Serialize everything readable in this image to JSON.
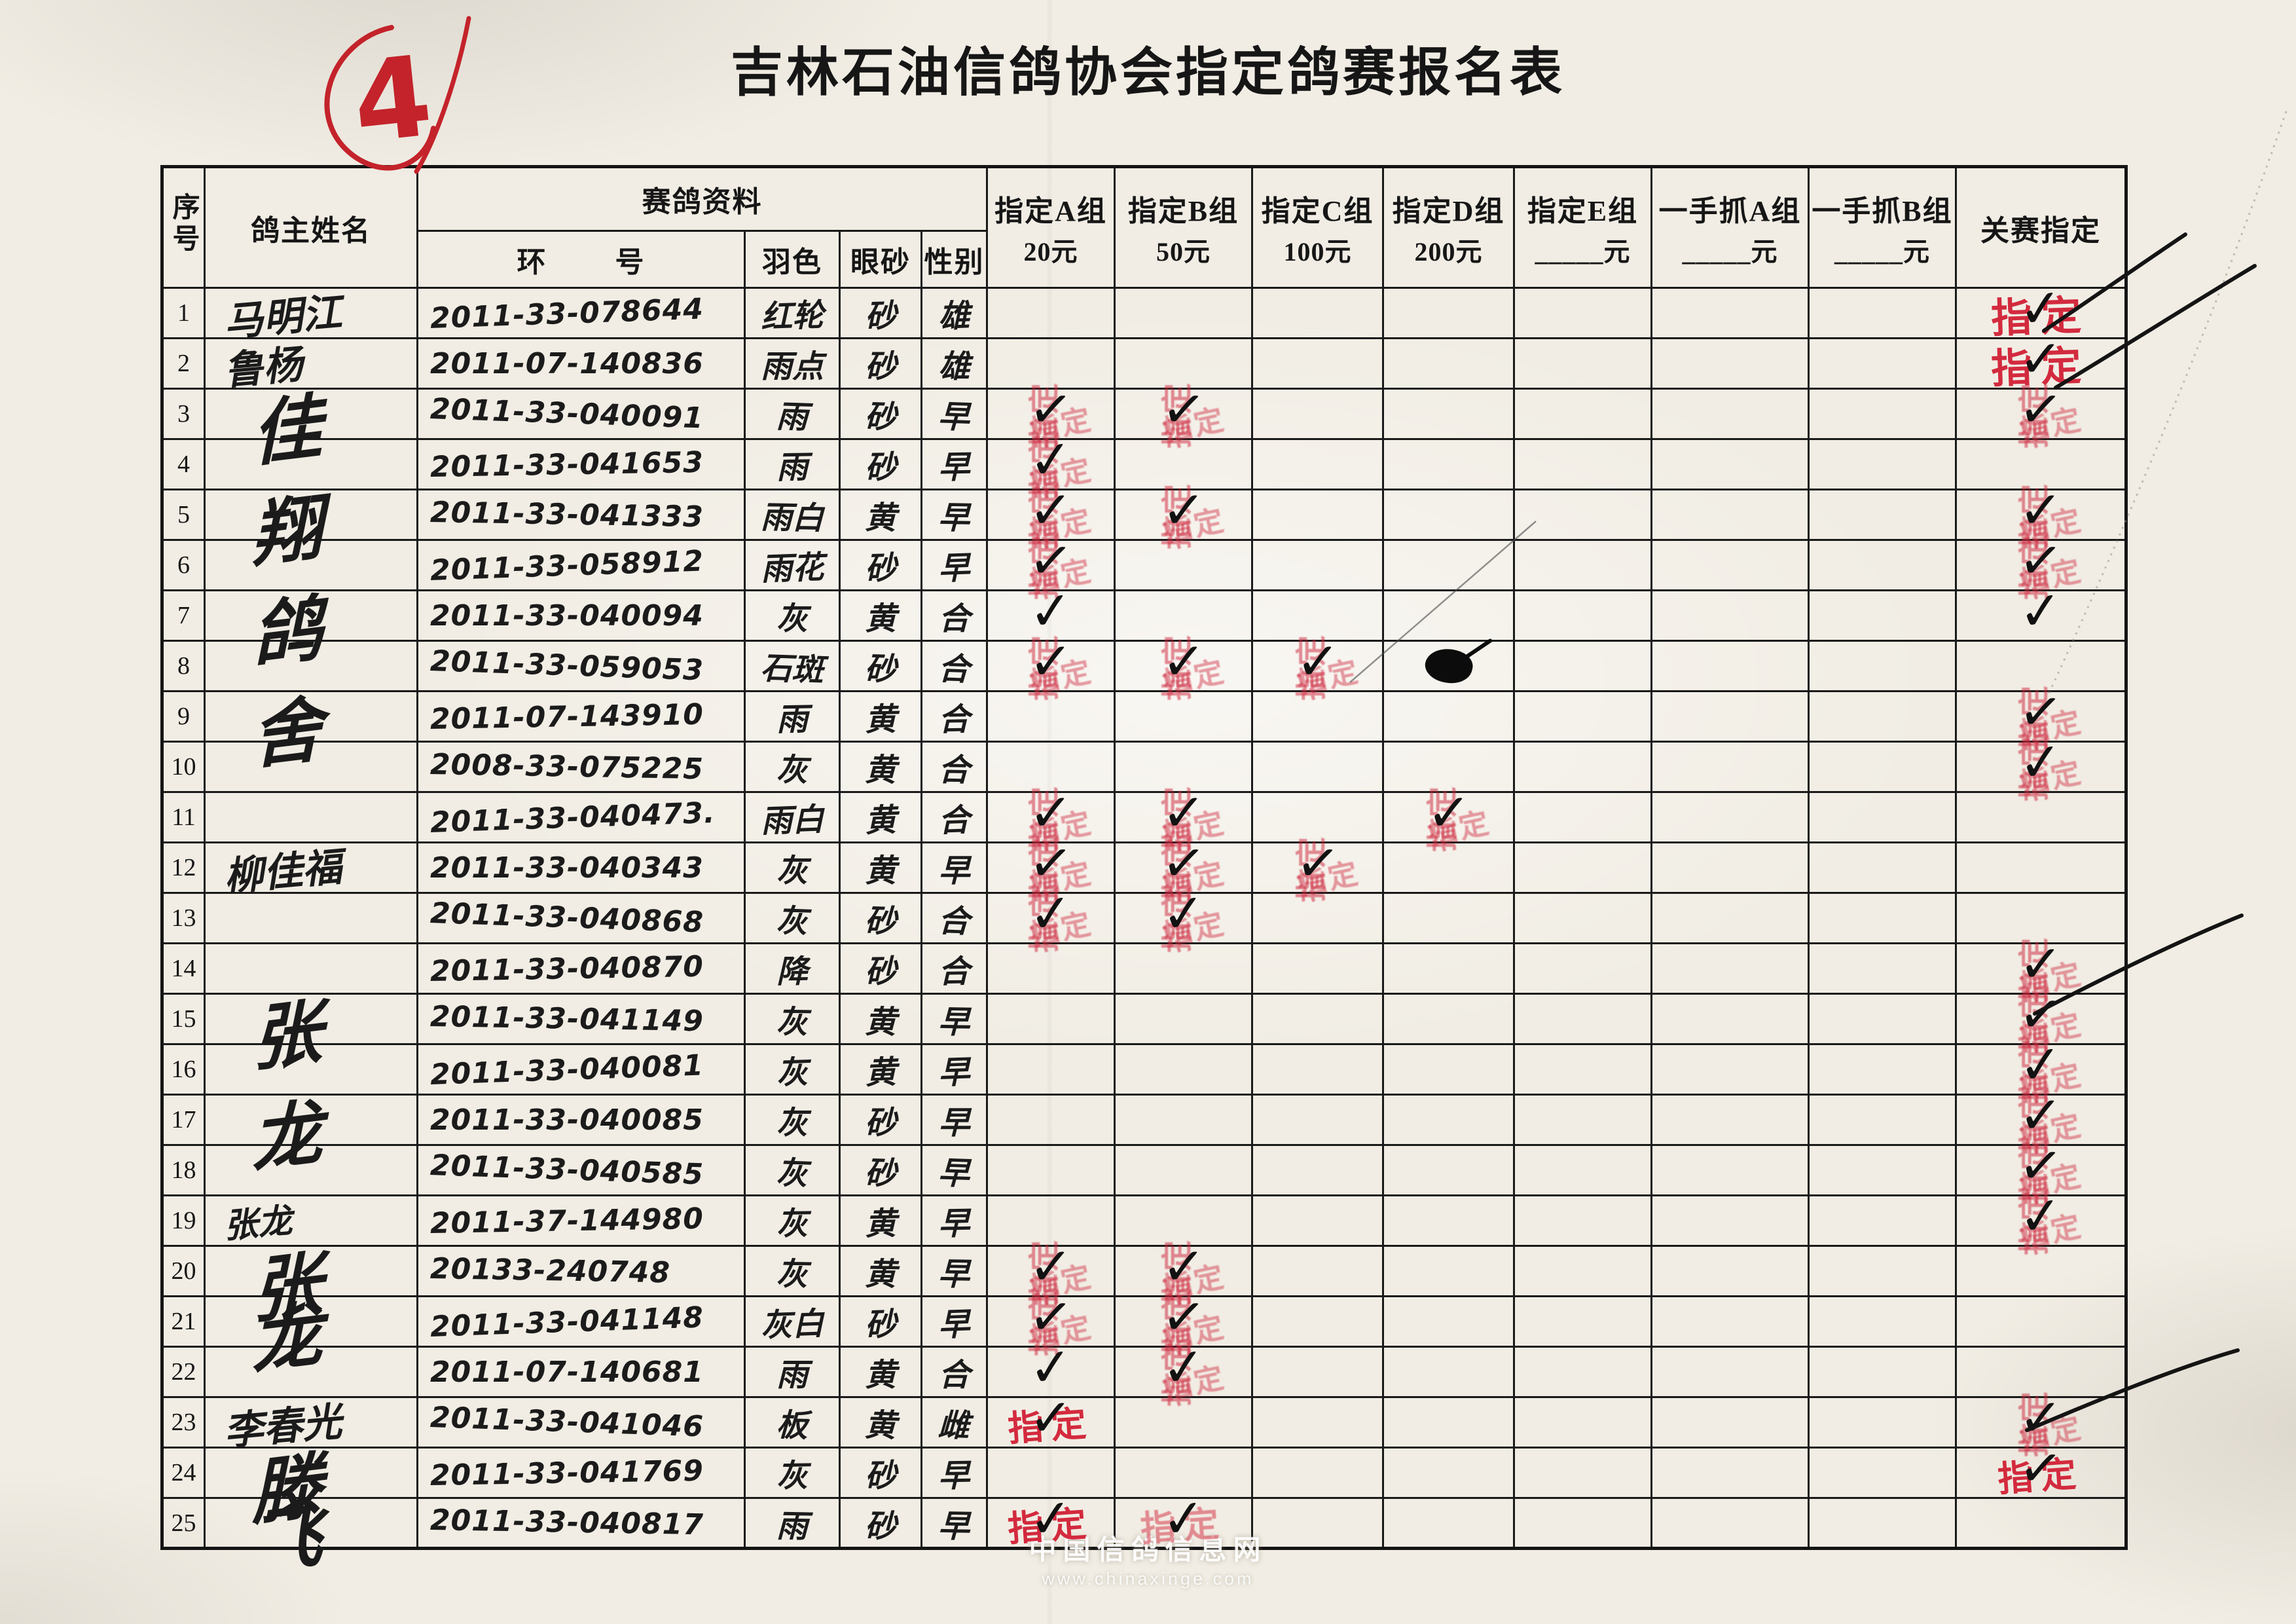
{
  "page": {
    "corner_mark": "4",
    "title": "吉林石油信鸽协会指定鸽赛报名表",
    "watermark": {
      "line1": "中国信鸽信息网",
      "line2": "www.chinaxinge.com"
    }
  },
  "marks": {
    "check": "✓",
    "stamp": "指定"
  },
  "table": {
    "headers": {
      "index": "序号",
      "owner": "鸽主姓名",
      "info": "赛鸽资料",
      "ring": "环        号",
      "feather": "羽色",
      "eye": "眼砂",
      "sex": "性别",
      "groups": [
        {
          "l1": "指定A组",
          "l2": "20元"
        },
        {
          "l1": "指定B组",
          "l2": "50元"
        },
        {
          "l1": "指定C组",
          "l2": "100元"
        },
        {
          "l1": "指定D组",
          "l2": "200元"
        },
        {
          "l1": "指定E组",
          "l2": "_____元"
        },
        {
          "l1": "一手抓A组",
          "l2": "_____元"
        },
        {
          "l1": "一手抓B组",
          "l2": "_____元"
        }
      ],
      "final": "关赛指定"
    },
    "rows": [
      {
        "no": "1",
        "owner": "马明江",
        "owner_class": "owner-med",
        "ring": "2011-33-078644",
        "feather": "红轮",
        "eye": "砂",
        "sex": "雄",
        "marks": {
          "fin": "ZBC"
        }
      },
      {
        "no": "2",
        "owner": "鲁杨",
        "owner_class": "owner-med",
        "ring": "2011-07-140836",
        "feather": "雨点",
        "eye": "砂",
        "sex": "雄",
        "marks": {
          "fin": "ZBC"
        }
      },
      {
        "no": "3",
        "owner": "佳",
        "owner_class": "owner-big",
        "ring": "2011-33-040091",
        "feather": "雨",
        "eye": "砂",
        "sex": "早",
        "marks": {
          "a": "SC",
          "b": "SC",
          "fin": "SC"
        }
      },
      {
        "no": "4",
        "owner": "",
        "owner_class": "",
        "ring": "2011-33-041653",
        "feather": "雨",
        "eye": "砂",
        "sex": "早",
        "marks": {
          "a": "SC"
        }
      },
      {
        "no": "5",
        "owner": "翔",
        "owner_class": "owner-big",
        "ring": "2011-33-041333",
        "feather": "雨白",
        "eye": "黄",
        "sex": "早",
        "marks": {
          "a": "SC",
          "b": "SC",
          "fin": "SC"
        }
      },
      {
        "no": "6",
        "owner": "",
        "owner_class": "",
        "ring": "2011-33-058912",
        "feather": "雨花",
        "eye": "砂",
        "sex": "早",
        "marks": {
          "a": "SC",
          "fin": "SC"
        }
      },
      {
        "no": "7",
        "owner": "鸽",
        "owner_class": "owner-big",
        "ring": "2011-33-040094",
        "feather": "灰",
        "eye": "黄",
        "sex": "合",
        "marks": {
          "a": "C",
          "fin": "C"
        }
      },
      {
        "no": "8",
        "owner": "",
        "owner_class": "",
        "ring": "2011-33-059053",
        "feather": "石斑",
        "eye": "砂",
        "sex": "合",
        "marks": {
          "a": "SC",
          "b": "SC",
          "c": "SC",
          "d": "BLOB"
        }
      },
      {
        "no": "9",
        "owner": "舍",
        "owner_class": "owner-big",
        "ring": "2011-07-143910",
        "feather": "雨",
        "eye": "黄",
        "sex": "合",
        "marks": {
          "fin": "SC"
        }
      },
      {
        "no": "10",
        "owner": "",
        "owner_class": "",
        "ring": "2008-33-075225",
        "feather": "灰",
        "eye": "黄",
        "sex": "合",
        "marks": {
          "fin": "SC"
        }
      },
      {
        "no": "11",
        "owner": "",
        "owner_class": "",
        "ring": "2011-33-040473.",
        "feather": "雨白",
        "eye": "黄",
        "sex": "合",
        "marks": {
          "a": "SC",
          "b": "SC",
          "d": "SC"
        }
      },
      {
        "no": "12",
        "owner": "柳佳福",
        "owner_class": "owner-med",
        "ring": "2011-33-040343",
        "feather": "灰",
        "eye": "黄",
        "sex": "早",
        "marks": {
          "a": "SC",
          "b": "SC",
          "c": "SC"
        }
      },
      {
        "no": "13",
        "owner": "",
        "owner_class": "",
        "ring": "2011-33-040868",
        "feather": "灰",
        "eye": "砂",
        "sex": "合",
        "marks": {
          "a": "SC",
          "b": "SC"
        }
      },
      {
        "no": "14",
        "owner": "",
        "owner_class": "",
        "ring": "2011-33-040870",
        "feather": "降",
        "eye": "砂",
        "sex": "合",
        "marks": {
          "fin": "SC"
        }
      },
      {
        "no": "15",
        "owner": "张",
        "owner_class": "owner-big",
        "ring": "2011-33-041149",
        "feather": "灰",
        "eye": "黄",
        "sex": "早",
        "marks": {
          "fin": "SC"
        }
      },
      {
        "no": "16",
        "owner": "",
        "owner_class": "",
        "ring": "2011-33-040081",
        "feather": "灰",
        "eye": "黄",
        "sex": "早",
        "marks": {
          "fin": "SC"
        }
      },
      {
        "no": "17",
        "owner": "龙",
        "owner_class": "owner-big",
        "ring": "2011-33-040085",
        "feather": "灰",
        "eye": "砂",
        "sex": "早",
        "marks": {
          "fin": "SC"
        }
      },
      {
        "no": "18",
        "owner": "",
        "owner_class": "",
        "ring": "2011-33-040585",
        "feather": "灰",
        "eye": "砂",
        "sex": "早",
        "marks": {
          "fin": "SC"
        }
      },
      {
        "no": "19",
        "owner": "张龙",
        "owner_class": "owner-small",
        "ring": "2011-37-144980",
        "feather": "灰",
        "eye": "黄",
        "sex": "早",
        "marks": {
          "fin": "SC"
        }
      },
      {
        "no": "20",
        "owner": "张",
        "owner_class": "owner-big",
        "ring": "20133-240748",
        "feather": "灰",
        "eye": "黄",
        "sex": "早",
        "marks": {
          "a": "SC",
          "b": "SC"
        }
      },
      {
        "no": "21",
        "owner": "龙",
        "owner_class": "owner-big",
        "ring": "2011-33-041148",
        "feather": "灰白",
        "eye": "砂",
        "sex": "早",
        "marks": {
          "a": "SC",
          "b": "SC"
        }
      },
      {
        "no": "22",
        "owner": "",
        "owner_class": "",
        "ring": "2011-07-140681",
        "feather": "雨",
        "eye": "黄",
        "sex": "合",
        "marks": {
          "a": "C",
          "b": "SC"
        }
      },
      {
        "no": "23",
        "owner": "李春光",
        "owner_class": "owner-med",
        "ring": "2011-33-041046",
        "feather": "板",
        "eye": "黄",
        "sex": "雌",
        "marks": {
          "a": "ZC",
          "fin": "SC"
        }
      },
      {
        "no": "24",
        "owner": "滕",
        "owner_class": "owner-big",
        "ring": "2011-33-041769",
        "feather": "灰",
        "eye": "砂",
        "sex": "早",
        "marks": {
          "fin": "ZC"
        }
      },
      {
        "no": "25",
        "owner": "飞",
        "owner_class": "owner-big",
        "ring": "2011-33-040817",
        "feather": "雨",
        "eye": "砂",
        "sex": "早",
        "marks": {
          "a": "ZC",
          "b": "ZLC"
        }
      }
    ]
  }
}
